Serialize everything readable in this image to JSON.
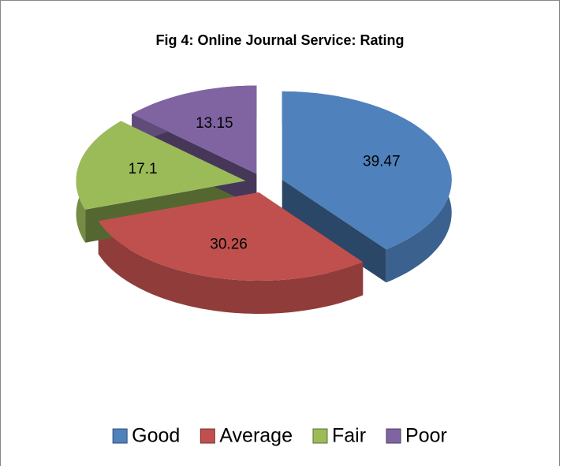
{
  "chart_data": {
    "type": "pie3d",
    "title": "Fig 4: Online Journal Service: Rating",
    "categories": [
      "Good",
      "Average",
      "Fair",
      "Poor"
    ],
    "values": [
      39.47,
      30.26,
      17.1,
      13.15
    ],
    "colors": [
      "#4f81bd",
      "#c0504d",
      "#9bbb59",
      "#8064a2"
    ],
    "legend": "bottom"
  }
}
